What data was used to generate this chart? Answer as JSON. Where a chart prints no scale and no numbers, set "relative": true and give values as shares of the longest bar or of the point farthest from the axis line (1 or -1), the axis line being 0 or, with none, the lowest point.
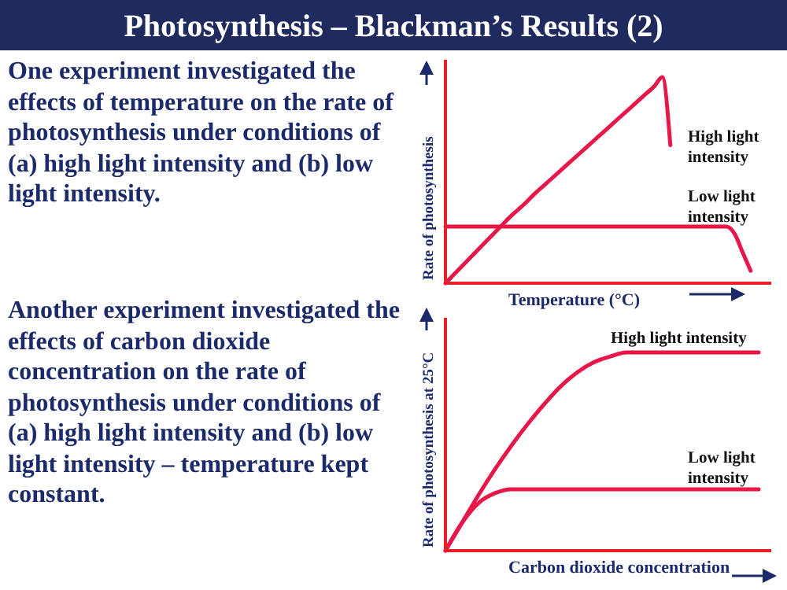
{
  "chart_data": [
    {
      "type": "other",
      "title": "Photosynthesis – Blackman’s Results (2)",
      "annotations": [
        "One experiment investigated the effects of temperature on the rate of photosynthesis under conditions of (a) high light intensity and (b) low light intensity.",
        "Another experiment investigated the effects of carbon dioxide concentration on the rate of photosynthesis under conditions of (a) high light intensity and (b) low light intensity – temperature kept constant."
      ]
    },
    {
      "type": "line",
      "relative": true,
      "xlabel": "Temperature (°C)",
      "ylabel": "Rate of photosynthesis",
      "legend": false,
      "marker": "none",
      "line_style": "solid",
      "categories": [
        null,
        null,
        null,
        null,
        null,
        null,
        null,
        null,
        null,
        null,
        null,
        null,
        null,
        null,
        null,
        null,
        null,
        null,
        null,
        null,
        null,
        null,
        null,
        null,
        null,
        null,
        null,
        null,
        null,
        null,
        null,
        null,
        null,
        null,
        null,
        null,
        null,
        null,
        null,
        null
      ],
      "series": [
        {
          "name": "High light intensity",
          "color": "#e8174a",
          "values": [
            0,
            0.04,
            0.08,
            0.12,
            0.16,
            0.2,
            0.24,
            0.28,
            0.32,
            0.355,
            0.39,
            0.43,
            0.465,
            0.5,
            0.535,
            0.57,
            0.605,
            0.64,
            0.675,
            0.71,
            0.745,
            0.78,
            0.815,
            0.85,
            0.885,
            0.92,
            0.955,
            1,
            0.67,
            null,
            null,
            null,
            null,
            null,
            null,
            null,
            null,
            null,
            null,
            null
          ]
        },
        {
          "name": "Low light intensity",
          "color": "#e8174a",
          "values": [
            0.275,
            0.275,
            0.275,
            0.275,
            0.275,
            0.275,
            0.275,
            0.275,
            0.275,
            0.275,
            0.275,
            0.275,
            0.275,
            0.275,
            0.275,
            0.275,
            0.275,
            0.275,
            0.275,
            0.275,
            0.275,
            0.275,
            0.275,
            0.275,
            0.275,
            0.275,
            0.275,
            0.275,
            0.275,
            0.275,
            0.275,
            0.275,
            0.275,
            0.275,
            0.275,
            0.275,
            0.24,
            0.15,
            0.06,
            null
          ]
        }
      ]
    },
    {
      "type": "line",
      "relative": true,
      "xlabel": "Carbon dioxide concentration",
      "ylabel": "Rate of photosynthesis at 25°C",
      "legend": false,
      "marker": "none",
      "line_style": "solid",
      "categories": [
        null,
        null,
        null,
        null,
        null,
        null,
        null,
        null,
        null,
        null,
        null,
        null,
        null,
        null,
        null,
        null,
        null,
        null,
        null,
        null
      ],
      "series": [
        {
          "name": "High light intensity",
          "color": "#e8174a",
          "values": [
            0,
            0.14,
            0.28,
            0.41,
            0.53,
            0.64,
            0.74,
            0.83,
            0.9,
            0.95,
            0.98,
            1,
            1,
            1,
            1,
            1,
            1,
            1,
            1,
            1
          ]
        },
        {
          "name": "Low light intensity",
          "color": "#e8174a",
          "values": [
            0,
            0.14,
            0.24,
            0.29,
            0.31,
            0.31,
            0.31,
            0.31,
            0.31,
            0.31,
            0.31,
            0.31,
            0.31,
            0.31,
            0.31,
            0.31,
            0.31,
            0.31,
            0.31,
            0.31
          ]
        }
      ]
    }
  ]
}
